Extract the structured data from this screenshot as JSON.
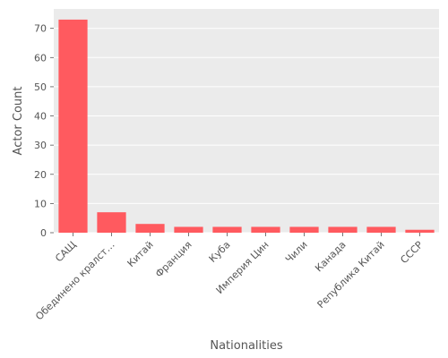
{
  "chart_data": {
    "type": "bar",
    "title": "",
    "xlabel": "Nationalities",
    "ylabel": "Actor Count",
    "categories": [
      "САЩ",
      "Обединено кралст…",
      "Китай",
      "Франция",
      "Куба",
      "Империя Цин",
      "Чили",
      "Канада",
      "Република Китай",
      "СССР"
    ],
    "values": [
      73,
      7,
      3,
      2,
      2,
      2,
      2,
      2,
      2,
      1
    ],
    "ylim": [
      0,
      76.65
    ],
    "yticks": [
      0,
      10,
      20,
      30,
      40,
      50,
      60,
      70
    ],
    "grid": true,
    "bar_color": "#ff5a5f",
    "background_color": "#ebebeb",
    "grid_color": "#ffffff"
  }
}
